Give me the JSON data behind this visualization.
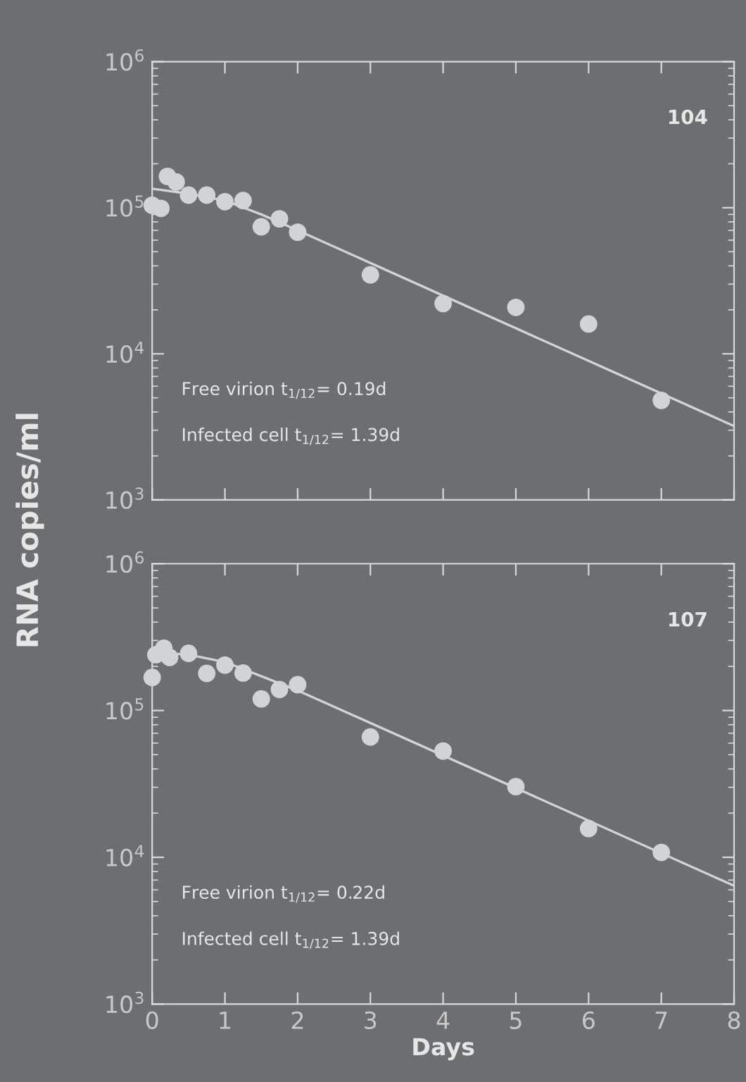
{
  "chart_data": [
    {
      "type": "scatter",
      "ylabel": "RNA copies/ml",
      "log": "y",
      "xlim": [
        0,
        8
      ],
      "ylim": [
        1000,
        1000000
      ],
      "xticks": [
        0,
        1,
        2,
        3,
        4,
        5,
        6,
        7,
        8
      ],
      "yticks": [
        {
          "value": 1000,
          "label": "10$^{3}$"
        },
        {
          "value": 10000,
          "label": "10$^{4}$"
        },
        {
          "value": 100000,
          "label": "10$^{5}$"
        },
        {
          "value": 1000000,
          "label": "10$^{6}$"
        }
      ],
      "tick_labels": "y",
      "grid": false,
      "legend": false,
      "annotations": [
        "104",
        "Free virion t$_{1/12}$= 0.19d",
        "Infected cell t$_{1/12}$= 1.39d"
      ],
      "series": [
        {
          "marker": "circle",
          "color": "#d2d3d5",
          "x": [
            0,
            0.12,
            0.21,
            0.33,
            0.5,
            0.75,
            1,
            1.25,
            1.5,
            1.75,
            2,
            3,
            4,
            5,
            6,
            7
          ],
          "values": [
            104000,
            99000,
            164000,
            150000,
            122000,
            122000,
            110000,
            112000,
            74000,
            84000,
            68000,
            34700,
            22100,
            20800,
            16000,
            4800
          ]
        },
        {
          "type": "line",
          "marker": "none",
          "color": "#d2d3d5",
          "x": [
            0,
            0.5,
            1,
            1.5,
            2,
            8
          ],
          "values": [
            135000,
            125000,
            112000,
            90000,
            70000,
            3200
          ]
        }
      ]
    },
    {
      "type": "scatter",
      "xlabel": "Days",
      "log": "y",
      "xlim": [
        0,
        8
      ],
      "ylim": [
        1000,
        1000000
      ],
      "xticks": [
        0,
        1,
        2,
        3,
        4,
        5,
        6,
        7,
        8
      ],
      "yticks": [
        {
          "value": 1000,
          "label": "10$^{3}$"
        },
        {
          "value": 10000,
          "label": "10$^{4}$"
        },
        {
          "value": 100000,
          "label": "10$^{5}$"
        },
        {
          "value": 1000000,
          "label": "10$^{6}$"
        }
      ],
      "grid": false,
      "legend": false,
      "annotations": [
        "107",
        "Free virion t$_{1/12}$= 0.22d",
        "Infected cell t$_{1/12}$= 1.39d"
      ],
      "series": [
        {
          "marker": "circle",
          "color": "#d2d3d5",
          "x": [
            0,
            0.05,
            0.16,
            0.24,
            0.5,
            0.75,
            1,
            1.25,
            1.5,
            1.75,
            2,
            3,
            4,
            5,
            6,
            7
          ],
          "values": [
            168000,
            240000,
            266000,
            230000,
            245000,
            179000,
            204000,
            180000,
            120000,
            139000,
            150000,
            66000,
            53000,
            30300,
            15700,
            10800
          ]
        },
        {
          "type": "line",
          "marker": "none",
          "color": "#d2d3d5",
          "x": [
            0,
            0.5,
            1,
            2,
            8
          ],
          "values": [
            250000,
            240000,
            214000,
            137000,
            6400
          ]
        }
      ]
    }
  ]
}
